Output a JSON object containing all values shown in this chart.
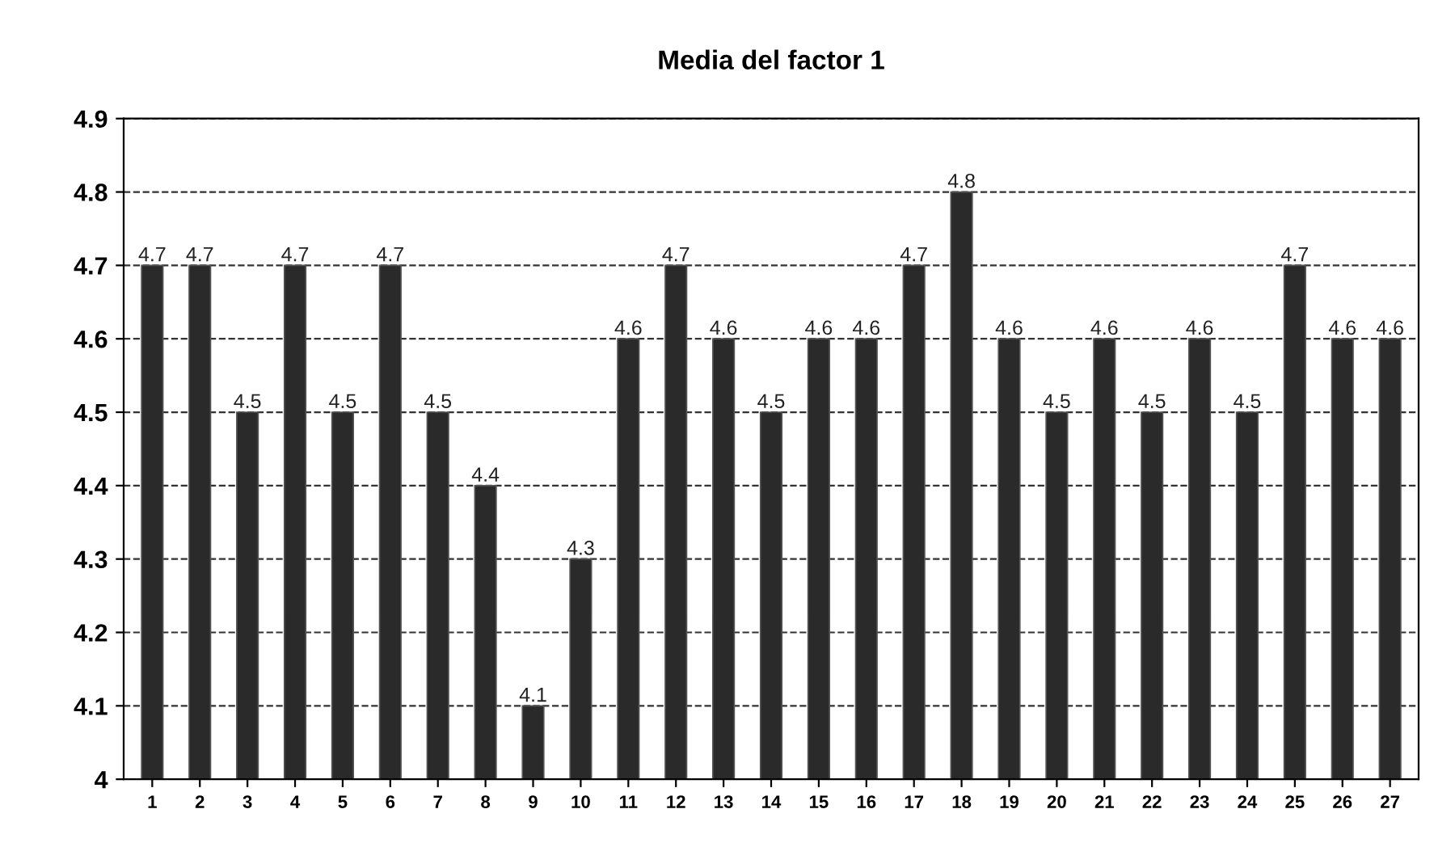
{
  "chart_data": {
    "type": "bar",
    "title": "Media del factor 1",
    "categories": [
      "1",
      "2",
      "3",
      "4",
      "5",
      "6",
      "7",
      "8",
      "9",
      "10",
      "11",
      "12",
      "13",
      "14",
      "15",
      "16",
      "17",
      "18",
      "19",
      "20",
      "21",
      "22",
      "23",
      "24",
      "25",
      "26",
      "27"
    ],
    "values": [
      4.7,
      4.7,
      4.5,
      4.7,
      4.5,
      4.7,
      4.5,
      4.4,
      4.1,
      4.3,
      4.6,
      4.7,
      4.6,
      4.5,
      4.6,
      4.6,
      4.7,
      4.8,
      4.6,
      4.5,
      4.6,
      4.5,
      4.6,
      4.5,
      4.7,
      4.6,
      4.6
    ],
    "color": "#2a2a2a",
    "ylim": [
      4,
      4.9
    ],
    "yticks": [
      4,
      4.1,
      4.2,
      4.3,
      4.4,
      4.5,
      4.6,
      4.7,
      4.8,
      4.9
    ],
    "grid": "y",
    "line_style": "dashed",
    "data_labels": true,
    "legend": false
  }
}
